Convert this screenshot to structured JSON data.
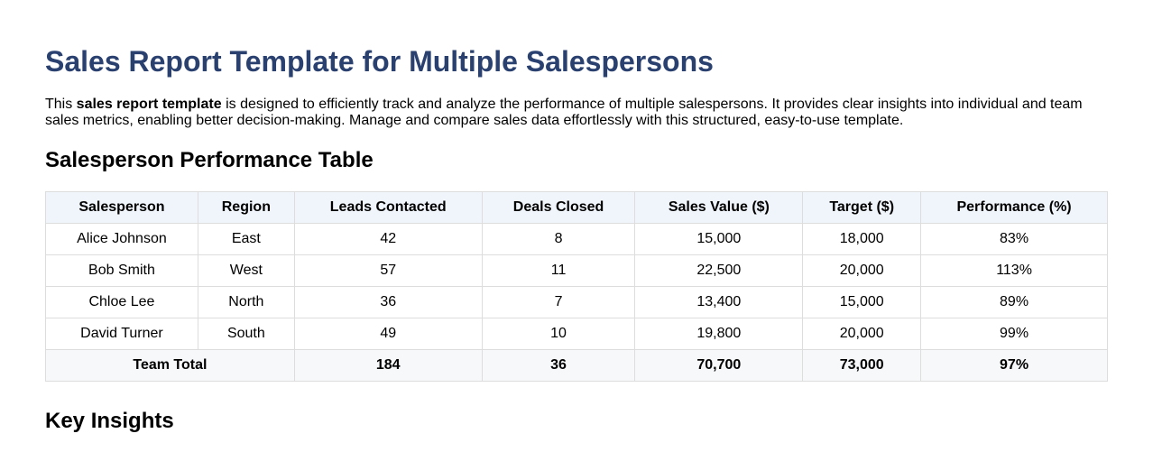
{
  "document": {
    "title": "Sales Report Template for Multiple Salespersons",
    "intro": {
      "before": "This ",
      "bold": "sales report template",
      "after": " is designed to efficiently track and analyze the performance of multiple salespersons. It provides clear insights into individual and team sales metrics, enabling better decision-making. Manage and compare sales data effortlessly with this structured, easy-to-use template."
    },
    "sections": {
      "performance_heading": "Salesperson Performance Table",
      "insights_heading": "Key Insights"
    }
  },
  "table": {
    "headers": [
      "Salesperson",
      "Region",
      "Leads Contacted",
      "Deals Closed",
      "Sales Value ($)",
      "Target ($)",
      "Performance (%)"
    ],
    "rows": [
      [
        "Alice Johnson",
        "East",
        "42",
        "8",
        "15,000",
        "18,000",
        "83%"
      ],
      [
        "Bob Smith",
        "West",
        "57",
        "11",
        "22,500",
        "20,000",
        "113%"
      ],
      [
        "Chloe Lee",
        "North",
        "36",
        "7",
        "13,400",
        "15,000",
        "89%"
      ],
      [
        "David Turner",
        "South",
        "49",
        "10",
        "19,800",
        "20,000",
        "99%"
      ]
    ],
    "total": {
      "label": "Team Total",
      "values": [
        "184",
        "36",
        "70,700",
        "73,000",
        "97%"
      ]
    }
  },
  "colors": {
    "title": "#2a4170",
    "header_bg": "#f0f4fb",
    "total_bg": "#f7f8fa",
    "border": "#dddddd"
  }
}
